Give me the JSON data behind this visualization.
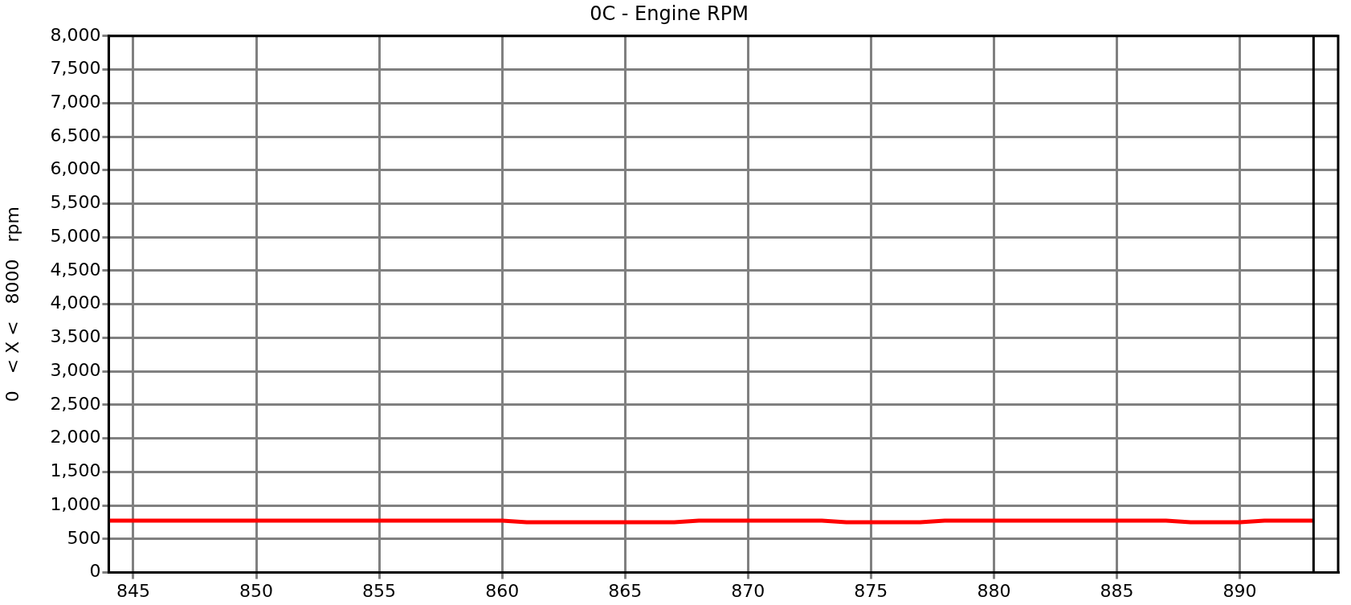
{
  "chart_data": {
    "type": "line",
    "title": "0C - Engine RPM",
    "ylabel": "0   < X <   8000   rpm",
    "x": [
      844,
      845,
      846,
      847,
      848,
      849,
      850,
      851,
      852,
      853,
      854,
      855,
      856,
      857,
      858,
      859,
      860,
      861,
      862,
      863,
      864,
      865,
      866,
      867,
      868,
      869,
      870,
      871,
      872,
      873,
      874,
      875,
      876,
      877,
      878,
      879,
      880,
      881,
      882,
      883,
      884,
      885,
      886,
      887,
      888,
      889,
      890,
      891,
      892,
      893
    ],
    "series": [
      {
        "color": "#ff0000",
        "values": [
          775,
          775,
          775,
          775,
          775,
          775,
          775,
          775,
          775,
          775,
          775,
          775,
          775,
          775,
          775,
          775,
          775,
          750,
          750,
          750,
          750,
          750,
          750,
          750,
          775,
          775,
          775,
          775,
          775,
          775,
          750,
          750,
          750,
          750,
          775,
          775,
          775,
          775,
          775,
          775,
          775,
          775,
          775,
          775,
          750,
          750,
          750,
          775,
          775,
          775
        ]
      }
    ],
    "xlim": [
      844,
      894
    ],
    "xticks": [
      845,
      850,
      855,
      860,
      865,
      870,
      875,
      880,
      885,
      890
    ],
    "ylim": [
      0,
      8000
    ],
    "yticks": [
      0,
      500,
      {
        "value": 1000,
        "label": "1,000"
      },
      {
        "value": 1500,
        "label": "1,500"
      },
      {
        "value": 2000,
        "label": "2,000"
      },
      {
        "value": 2500,
        "label": "2,500"
      },
      {
        "value": 3000,
        "label": "3,000"
      },
      {
        "value": 3500,
        "label": "3,500"
      },
      {
        "value": 4000,
        "label": "4,000"
      },
      {
        "value": 4500,
        "label": "4,500"
      },
      {
        "value": 5000,
        "label": "5,000"
      },
      {
        "value": 5500,
        "label": "5,500"
      },
      {
        "value": 6000,
        "label": "6,000"
      },
      {
        "value": 6500,
        "label": "6,500"
      },
      {
        "value": 7000,
        "label": "7,000"
      },
      {
        "value": 7500,
        "label": "7,500"
      },
      {
        "value": 8000,
        "label": "8,000"
      }
    ],
    "ref_lines": [
      {
        "axis": "x",
        "value": 893,
        "color": "#000000"
      }
    ],
    "grid": true,
    "legend": false,
    "marker": "none",
    "line_style": "solid"
  }
}
